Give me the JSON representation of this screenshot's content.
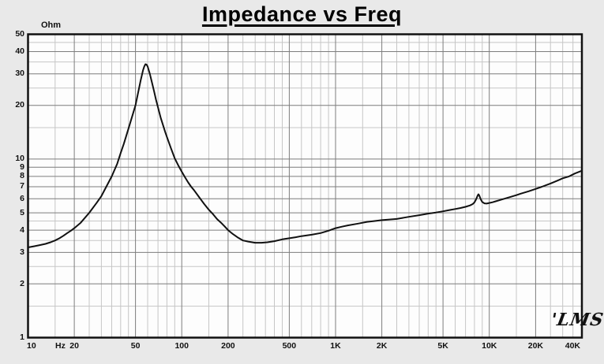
{
  "title": "Impedance vs Freq",
  "y_axis": {
    "unit_label": "Ohm",
    "tick_values": [
      50,
      40,
      30,
      20,
      10,
      9,
      8,
      7,
      6,
      5,
      4,
      3,
      2,
      1
    ]
  },
  "x_axis": {
    "unit_label": "Hz",
    "ticks": [
      {
        "f": 10,
        "label": "10"
      },
      {
        "f": 20,
        "label": "20"
      },
      {
        "f": 50,
        "label": "50"
      },
      {
        "f": 100,
        "label": "100"
      },
      {
        "f": 200,
        "label": "200"
      },
      {
        "f": 500,
        "label": "500"
      },
      {
        "f": 1000,
        "label": "1K"
      },
      {
        "f": 2000,
        "label": "2K"
      },
      {
        "f": 5000,
        "label": "5K"
      },
      {
        "f": 10000,
        "label": "10K"
      },
      {
        "f": 20000,
        "label": "20K"
      },
      {
        "f": 40000,
        "label": "40K"
      }
    ]
  },
  "logo_text": "'LMS",
  "colors": {
    "background": "#e9e9e9",
    "plot_background": "#fdfdfd",
    "grid_minor": "#c6c6c6",
    "grid_major": "#7d7d7d",
    "border": "#111111",
    "curve": "#111111",
    "text": "#111111"
  },
  "chart_data": {
    "type": "line",
    "title": "Impedance vs Freq",
    "xlabel": "Hz",
    "ylabel": "Ohm",
    "x_scale": "log",
    "y_scale": "log",
    "xlim": [
      10,
      40000
    ],
    "ylim": [
      1,
      50
    ],
    "grid": true,
    "grid_multiples": [
      1,
      1.5,
      2,
      2.5,
      3,
      3.5,
      4,
      4.5,
      5,
      6,
      7,
      8,
      9
    ],
    "x_major_lines": [
      20,
      50,
      100,
      200,
      500,
      1000,
      2000,
      5000,
      10000,
      20000
    ],
    "y_major_lines": [
      2,
      3,
      4,
      5,
      6,
      7,
      8,
      9,
      10,
      20,
      30,
      40
    ],
    "x_tick_labels": [
      "10 Hz",
      "20",
      "50",
      "100",
      "200",
      "500",
      "1K",
      "2K",
      "5K",
      "10K",
      "20K",
      "40K"
    ],
    "y_tick_labels": [
      "1",
      "2",
      "3",
      "4",
      "5",
      "6",
      "7",
      "8",
      "9",
      "10",
      "20",
      "30",
      "40",
      "50"
    ],
    "series": [
      {
        "name": "Impedance",
        "points": [
          [
            10,
            3.2
          ],
          [
            11,
            3.25
          ],
          [
            12,
            3.3
          ],
          [
            13,
            3.35
          ],
          [
            14,
            3.42
          ],
          [
            15,
            3.5
          ],
          [
            16,
            3.6
          ],
          [
            17,
            3.72
          ],
          [
            18,
            3.85
          ],
          [
            19,
            3.97
          ],
          [
            20,
            4.1
          ],
          [
            22,
            4.4
          ],
          [
            25,
            5.0
          ],
          [
            28,
            5.7
          ],
          [
            30,
            6.2
          ],
          [
            32,
            6.9
          ],
          [
            35,
            8.0
          ],
          [
            38,
            9.4
          ],
          [
            40,
            10.8
          ],
          [
            42,
            12.2
          ],
          [
            45,
            14.8
          ],
          [
            48,
            17.8
          ],
          [
            50,
            20
          ],
          [
            52,
            23.5
          ],
          [
            54,
            27.5
          ],
          [
            56,
            31.5
          ],
          [
            57,
            33
          ],
          [
            58,
            34
          ],
          [
            59,
            33.8
          ],
          [
            60,
            33
          ],
          [
            62,
            30
          ],
          [
            64,
            26.8
          ],
          [
            66,
            24
          ],
          [
            68,
            21.5
          ],
          [
            70,
            19.5
          ],
          [
            73,
            17
          ],
          [
            75,
            15.8
          ],
          [
            78,
            14.2
          ],
          [
            80,
            13.3
          ],
          [
            85,
            11.5
          ],
          [
            90,
            10.1
          ],
          [
            95,
            9.2
          ],
          [
            100,
            8.5
          ],
          [
            105,
            7.9
          ],
          [
            110,
            7.4
          ],
          [
            115,
            7.0
          ],
          [
            120,
            6.7
          ],
          [
            130,
            6.1
          ],
          [
            140,
            5.6
          ],
          [
            150,
            5.2
          ],
          [
            160,
            4.9
          ],
          [
            170,
            4.6
          ],
          [
            180,
            4.4
          ],
          [
            190,
            4.2
          ],
          [
            200,
            4.0
          ],
          [
            215,
            3.8
          ],
          [
            230,
            3.65
          ],
          [
            250,
            3.5
          ],
          [
            270,
            3.45
          ],
          [
            300,
            3.4
          ],
          [
            330,
            3.4
          ],
          [
            360,
            3.42
          ],
          [
            400,
            3.47
          ],
          [
            450,
            3.55
          ],
          [
            500,
            3.6
          ],
          [
            550,
            3.65
          ],
          [
            600,
            3.7
          ],
          [
            700,
            3.77
          ],
          [
            800,
            3.85
          ],
          [
            900,
            3.97
          ],
          [
            1000,
            4.1
          ],
          [
            1100,
            4.18
          ],
          [
            1200,
            4.25
          ],
          [
            1400,
            4.35
          ],
          [
            1600,
            4.45
          ],
          [
            1800,
            4.5
          ],
          [
            2000,
            4.55
          ],
          [
            2200,
            4.58
          ],
          [
            2500,
            4.62
          ],
          [
            2800,
            4.7
          ],
          [
            3000,
            4.75
          ],
          [
            3500,
            4.85
          ],
          [
            4000,
            4.95
          ],
          [
            4500,
            5.02
          ],
          [
            5000,
            5.1
          ],
          [
            5500,
            5.18
          ],
          [
            6000,
            5.25
          ],
          [
            6500,
            5.32
          ],
          [
            7000,
            5.4
          ],
          [
            7500,
            5.5
          ],
          [
            7800,
            5.6
          ],
          [
            8000,
            5.72
          ],
          [
            8200,
            5.95
          ],
          [
            8400,
            6.25
          ],
          [
            8500,
            6.35
          ],
          [
            8600,
            6.25
          ],
          [
            8800,
            5.95
          ],
          [
            9000,
            5.75
          ],
          [
            9300,
            5.65
          ],
          [
            9600,
            5.63
          ],
          [
            10000,
            5.68
          ],
          [
            10500,
            5.73
          ],
          [
            11000,
            5.8
          ],
          [
            12000,
            5.93
          ],
          [
            13000,
            6.05
          ],
          [
            14000,
            6.17
          ],
          [
            15000,
            6.28
          ],
          [
            16000,
            6.4
          ],
          [
            18000,
            6.6
          ],
          [
            20000,
            6.8
          ],
          [
            22000,
            7.0
          ],
          [
            25000,
            7.3
          ],
          [
            28000,
            7.6
          ],
          [
            30000,
            7.8
          ],
          [
            33000,
            8.0
          ],
          [
            36000,
            8.3
          ],
          [
            40000,
            8.6
          ]
        ]
      }
    ]
  }
}
